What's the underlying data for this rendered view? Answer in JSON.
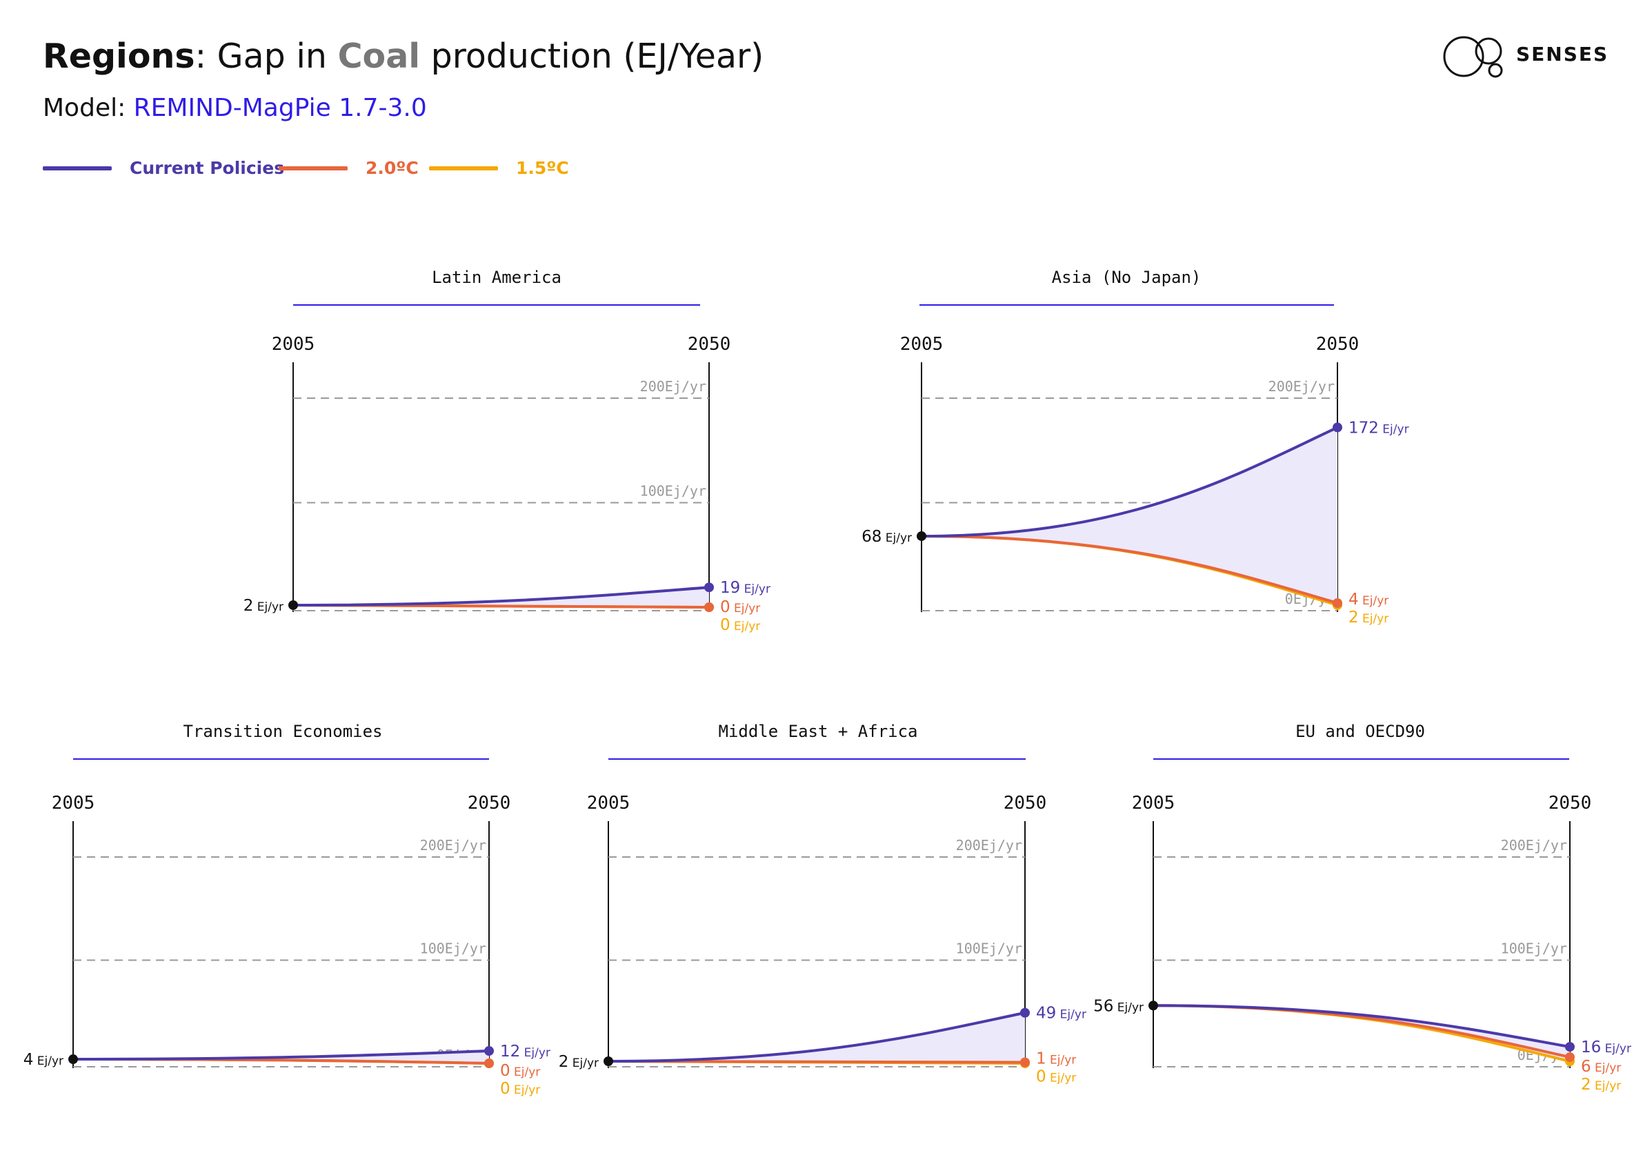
{
  "header": {
    "title_bold": "Regions",
    "title_pre": ": Gap in ",
    "title_fuel": "Coal",
    "title_post": " production (EJ/Year)",
    "model_label": "Model: ",
    "model_value": "REMIND-MagPie 1.7-3.0",
    "logo_text": "SENSES"
  },
  "colors": {
    "current_policies": "#4b3aa8",
    "two_deg": "#e8663b",
    "one_five_deg": "#f5a800",
    "gap_fill": "#ece9fb",
    "model_link": "#2e1ce8"
  },
  "legend": [
    {
      "label": "Current Policies",
      "color": "#4b3aa8"
    },
    {
      "label": "2.0ºC",
      "color": "#e8663b"
    },
    {
      "label": "1.5ºC",
      "color": "#f5a800"
    }
  ],
  "chart_data": [
    {
      "type": "line",
      "title": "Latin America",
      "x": [
        2005,
        2050
      ],
      "x_labels": [
        "2005",
        "2050"
      ],
      "ylim": [
        0,
        200
      ],
      "gridlines": [
        "200Ej/yr",
        "100Ej/yr",
        "0Ej/yr"
      ],
      "start": {
        "value": 2,
        "label": "2",
        "unit": "Ej/yr"
      },
      "series": [
        {
          "name": "Current Policies",
          "end": 19,
          "end_label": "19",
          "unit": "Ej/yr"
        },
        {
          "name": "2.0ºC",
          "end": 0,
          "end_label": "0",
          "unit": "Ej/yr"
        },
        {
          "name": "1.5ºC",
          "end": 0,
          "end_label": "0",
          "unit": "Ej/yr"
        }
      ]
    },
    {
      "type": "line",
      "title": "Asia (No Japan)",
      "x": [
        2005,
        2050
      ],
      "x_labels": [
        "2005",
        "2050"
      ],
      "ylim": [
        0,
        200
      ],
      "gridlines": [
        "200Ej/yr",
        "100Ej/yr",
        "0Ej/yr"
      ],
      "start": {
        "value": 68,
        "label": "68",
        "unit": "Ej/yr"
      },
      "series": [
        {
          "name": "Current Policies",
          "end": 172,
          "end_label": "172",
          "unit": "Ej/yr"
        },
        {
          "name": "2.0ºC",
          "end": 4,
          "end_label": "4",
          "unit": "Ej/yr"
        },
        {
          "name": "1.5ºC",
          "end": 2,
          "end_label": "2",
          "unit": "Ej/yr"
        }
      ]
    },
    {
      "type": "line",
      "title": "Transition Economies",
      "x": [
        2005,
        2050
      ],
      "x_labels": [
        "2005",
        "2050"
      ],
      "ylim": [
        0,
        200
      ],
      "gridlines": [
        "200Ej/yr",
        "100Ej/yr",
        "0Ej/yr"
      ],
      "start": {
        "value": 4,
        "label": "4",
        "unit": "Ej/yr"
      },
      "series": [
        {
          "name": "Current Policies",
          "end": 12,
          "end_label": "12",
          "unit": "Ej/yr"
        },
        {
          "name": "2.0ºC",
          "end": 0,
          "end_label": "0",
          "unit": "Ej/yr"
        },
        {
          "name": "1.5ºC",
          "end": 0,
          "end_label": "0",
          "unit": "Ej/yr"
        }
      ]
    },
    {
      "type": "line",
      "title": "Middle East + Africa",
      "x": [
        2005,
        2050
      ],
      "x_labels": [
        "2005",
        "2050"
      ],
      "ylim": [
        0,
        200
      ],
      "gridlines": [
        "200Ej/yr",
        "100Ej/yr",
        "0Ej/yr"
      ],
      "start": {
        "value": 2,
        "label": "2",
        "unit": "Ej/yr"
      },
      "series": [
        {
          "name": "Current Policies",
          "end": 49,
          "end_label": "49",
          "unit": "Ej/yr"
        },
        {
          "name": "2.0ºC",
          "end": 1,
          "end_label": "1",
          "unit": "Ej/yr"
        },
        {
          "name": "1.5ºC",
          "end": 0,
          "end_label": "0",
          "unit": "Ej/yr"
        }
      ]
    },
    {
      "type": "line",
      "title": "EU and OECD90",
      "x": [
        2005,
        2050
      ],
      "x_labels": [
        "2005",
        "2050"
      ],
      "ylim": [
        0,
        200
      ],
      "gridlines": [
        "200Ej/yr",
        "100Ej/yr",
        "0Ej/yr"
      ],
      "start": {
        "value": 56,
        "label": "56",
        "unit": "Ej/yr"
      },
      "series": [
        {
          "name": "Current Policies",
          "end": 16,
          "end_label": "16",
          "unit": "Ej/yr"
        },
        {
          "name": "2.0ºC",
          "end": 6,
          "end_label": "6",
          "unit": "Ej/yr"
        },
        {
          "name": "1.5ºC",
          "end": 2,
          "end_label": "2",
          "unit": "Ej/yr"
        }
      ]
    }
  ]
}
